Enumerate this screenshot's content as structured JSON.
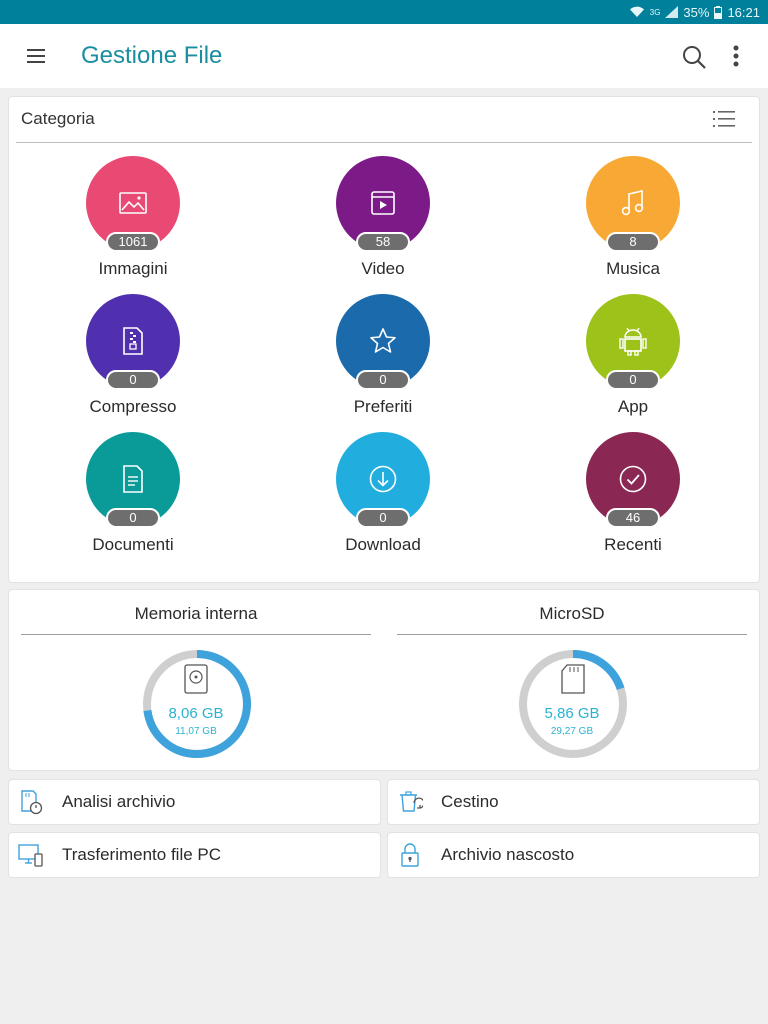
{
  "status_bar": {
    "network": "3G",
    "battery": "35%",
    "time": "16:21"
  },
  "app_bar": {
    "title": "Gestione File",
    "icons": [
      "menu-icon",
      "search-icon",
      "more-vert-icon"
    ]
  },
  "category": {
    "header": "Categoria",
    "items": [
      {
        "label": "Immagini",
        "count": "1061",
        "color": "#e84a73",
        "icon": "image-icon"
      },
      {
        "label": "Video",
        "count": "58",
        "color": "#7c1a88",
        "icon": "video-icon"
      },
      {
        "label": "Musica",
        "count": "8",
        "color": "#f8a935",
        "icon": "music-icon"
      },
      {
        "label": "Compresso",
        "count": "0",
        "color": "#5130b0",
        "icon": "archive-icon"
      },
      {
        "label": "Preferiti",
        "count": "0",
        "color": "#1a6aac",
        "icon": "star-icon"
      },
      {
        "label": "App",
        "count": "0",
        "color": "#9dc21a",
        "icon": "android-icon"
      },
      {
        "label": "Documenti",
        "count": "0",
        "color": "#0a9b99",
        "icon": "document-icon"
      },
      {
        "label": "Download",
        "count": "0",
        "color": "#21aedf",
        "icon": "download-icon"
      },
      {
        "label": "Recenti",
        "count": "46",
        "color": "#8a2752",
        "icon": "recent-check-icon"
      }
    ]
  },
  "storage": [
    {
      "title": "Memoria interna",
      "used": "8,06 GB",
      "total": "11,07 GB",
      "used_fraction": 0.728,
      "icon": "hard-drive-icon"
    },
    {
      "title": "MicroSD",
      "used": "5,86 GB",
      "total": "29,27 GB",
      "used_fraction": 0.2,
      "icon": "sd-card-icon"
    }
  ],
  "tools": [
    {
      "label": "Analisi archivio",
      "icon": "storage-analysis-icon"
    },
    {
      "label": "Cestino",
      "icon": "recycle-bin-icon"
    },
    {
      "label": "Trasferimento file PC",
      "icon": "pc-transfer-icon"
    },
    {
      "label": "Archivio nascosto",
      "icon": "lock-icon"
    }
  ],
  "colors": {
    "status_bar": "#00809a",
    "accent": "#1a8ea0",
    "donut_used": "#3ea3dc",
    "donut_track": "#cfcfcf"
  }
}
